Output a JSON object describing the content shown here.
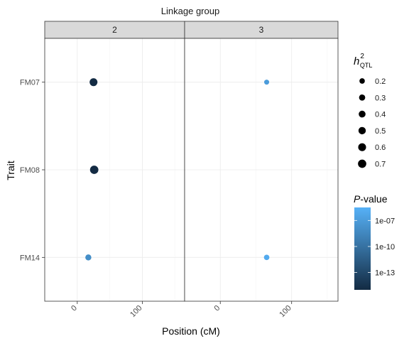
{
  "chart_data": {
    "type": "scatter",
    "title": "Linkage group",
    "xlabel": "Position (cM)",
    "ylabel": "Trait",
    "panels": [
      "2",
      "3"
    ],
    "xlim": [
      -50,
      165
    ],
    "x_ticks": [
      0,
      100
    ],
    "x_tick_labels": [
      "0",
      "100"
    ],
    "categories": [
      "FM07",
      "FM08",
      "FM14"
    ],
    "grid": true,
    "points": [
      {
        "panel": "2",
        "trait": "FM07",
        "x": 25,
        "h2": 0.6,
        "pvalue": 1e-15
      },
      {
        "panel": "2",
        "trait": "FM08",
        "x": 26,
        "h2": 0.72,
        "pvalue": 1e-15
      },
      {
        "panel": "2",
        "trait": "FM14",
        "x": 17,
        "h2": 0.28,
        "pvalue": 1e-08
      },
      {
        "panel": "3",
        "trait": "FM07",
        "x": 65,
        "h2": 0.15,
        "pvalue": 1e-07
      },
      {
        "panel": "3",
        "trait": "FM14",
        "x": 65,
        "h2": 0.2,
        "pvalue": 1e-06
      }
    ],
    "size_legend": {
      "title_main": "h",
      "title_sup": "2",
      "title_sub": "QTL",
      "values": [
        0.2,
        0.3,
        0.4,
        0.5,
        0.6,
        0.7
      ],
      "labels": [
        "0.2",
        "0.3",
        "0.4",
        "0.5",
        "0.6",
        "0.7"
      ]
    },
    "color_legend": {
      "title_italic": "P",
      "title_rest": "-value",
      "log_range": [
        -15,
        -5.5
      ],
      "breaks": [
        -7,
        -10,
        -13
      ],
      "labels": [
        "1e-07",
        "1e-10",
        "1e-13"
      ],
      "low_color": "#132B43",
      "high_color": "#56B1F7"
    },
    "colors": {
      "strip_fill": "#d9d9d9",
      "panel_border": "#333333",
      "grid_major": "#ebebeb",
      "grid_minor": "#f5f5f5"
    }
  }
}
